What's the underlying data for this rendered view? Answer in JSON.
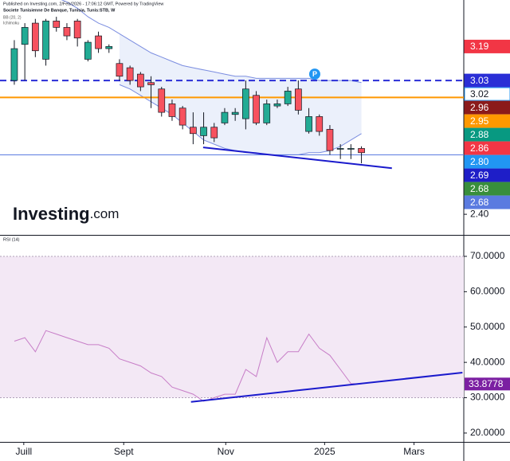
{
  "chart_data": [
    {
      "type": "candlestick",
      "title": "Societe Tunisienne De Banque, Tunisia, Tunis:STB, W",
      "subtitle": "Published on Investing.com, 2/Feb/2026 - 17:06:12 GMT, Powered by TradingView",
      "legend": [
        "BB (20, 2)",
        "Ichimoku"
      ],
      "watermark": {
        "brand": "Investing",
        "suffix": ".com"
      },
      "xlim": [
        -1.36,
        42.73
      ],
      "xticks": [
        {
          "value": 0.9,
          "label": "Juill"
        },
        {
          "value": 10.4,
          "label": "Sept"
        },
        {
          "value": 20.1,
          "label": "Nov"
        },
        {
          "value": 29.5,
          "label": "2025"
        },
        {
          "value": 38.0,
          "label": "Mars"
        }
      ],
      "ylim": [
        2.303,
        3.409
      ],
      "yticks": [
        {
          "value": 2.4,
          "label": "2.40"
        }
      ],
      "up_color": "#22ab94",
      "down_color": "#f7525f",
      "open": [
        3.03,
        3.2,
        3.3,
        3.13,
        3.31,
        3.28,
        3.31,
        3.13,
        3.24,
        3.18,
        3.11,
        3.09,
        3.06,
        3.02,
        2.99,
        2.92,
        2.9,
        2.81,
        2.77,
        2.81,
        2.83,
        2.87,
        2.85,
        2.96,
        2.83,
        2.91,
        2.92,
        2.99,
        2.79,
        2.86,
        2.8,
        2.71,
        2.71,
        2.71
      ],
      "high": [
        3.22,
        3.3,
        3.32,
        3.32,
        3.33,
        3.3,
        3.32,
        3.22,
        3.26,
        3.2,
        3.13,
        3.1,
        3.07,
        3.05,
        3.0,
        2.94,
        2.91,
        2.88,
        2.88,
        2.83,
        2.9,
        2.9,
        3.03,
        2.98,
        2.94,
        2.94,
        3.0,
        3.03,
        2.9,
        2.87,
        2.82,
        2.73,
        2.73,
        2.72
      ],
      "low": [
        3.01,
        3.03,
        3.14,
        3.1,
        3.26,
        3.22,
        3.19,
        3.12,
        3.16,
        3.16,
        3.03,
        3.01,
        2.98,
        2.9,
        2.86,
        2.84,
        2.8,
        2.73,
        2.73,
        2.74,
        2.82,
        2.84,
        2.8,
        2.82,
        2.82,
        2.9,
        2.91,
        2.87,
        2.78,
        2.77,
        2.68,
        2.66,
        2.66,
        2.64
      ],
      "close": [
        3.18,
        3.28,
        3.17,
        3.31,
        3.28,
        3.24,
        3.23,
        3.21,
        3.18,
        3.19,
        3.05,
        3.03,
        3.0,
        3.01,
        2.88,
        2.86,
        2.82,
        2.78,
        2.81,
        2.76,
        2.88,
        2.88,
        2.99,
        2.83,
        2.92,
        2.92,
        2.98,
        2.89,
        2.86,
        2.79,
        2.7,
        2.71,
        2.71,
        2.69
      ],
      "bands": {
        "color": "#7b8de0",
        "fill": "#dde6f8",
        "upper": [
          3.45,
          3.45,
          3.44,
          3.43,
          3.42,
          3.4,
          3.37,
          3.33,
          3.3,
          3.28,
          3.25,
          3.22,
          3.19,
          3.16,
          3.14,
          3.12,
          3.1,
          3.09,
          3.08,
          3.07,
          3.06,
          3.05,
          3.05,
          3.04,
          3.04,
          3.04,
          3.04,
          3.04,
          3.04,
          3.03,
          3.03,
          3.03,
          3.03,
          3.02
        ],
        "lower": [
          null,
          null,
          null,
          null,
          null,
          null,
          null,
          null,
          null,
          null,
          3.01,
          2.99,
          2.96,
          2.93,
          2.9,
          2.87,
          2.83,
          2.79,
          2.75,
          2.73,
          2.71,
          2.7,
          2.69,
          2.69,
          2.68,
          2.68,
          2.68,
          2.68,
          2.69,
          2.69,
          2.7,
          2.72,
          2.75,
          2.78
        ]
      },
      "levels": [
        {
          "value": 3.19,
          "label": "3.19",
          "color": "#f23645",
          "text_color": "#ffffff"
        },
        {
          "value": 3.03,
          "label": "3.03",
          "color": "#2a2ed6",
          "text_color": "#ffffff",
          "line": "dashed"
        },
        {
          "value": 3.02,
          "label": "3.02",
          "color": "#ffffff",
          "text_color": "#131722"
        },
        {
          "value": 2.96,
          "label": "2.96",
          "color": "#8b1a1a",
          "text_color": "#ffffff"
        },
        {
          "value": 2.95,
          "label": "2.95",
          "color": "#ff9800",
          "text_color": "#ffffff",
          "line": "solid"
        },
        {
          "value": 2.88,
          "label": "2.88",
          "color": "#089981",
          "text_color": "#ffffff"
        },
        {
          "value": 2.86,
          "label": "2.86",
          "color": "#f23645",
          "text_color": "#ffffff"
        },
        {
          "value": 2.8,
          "label": "2.80",
          "color": "#2196f3",
          "text_color": "#ffffff"
        },
        {
          "value": 2.69,
          "label": "2.69",
          "color": "#1e1ec8",
          "text_color": "#ffffff"
        },
        {
          "value": 2.68,
          "label": "2.68",
          "color": "#388e3c",
          "text_color": "#ffffff"
        },
        {
          "value": 2.68,
          "label": "2.68",
          "color": "#5b7be0",
          "text_color": "#ffffff",
          "line": "thin"
        }
      ],
      "trendline": {
        "x": [
          17.95,
          35.9
        ],
        "y": [
          2.715,
          2.617
        ],
        "color": "#1a1acc"
      },
      "pivot": {
        "x": 28.56,
        "y": 3.06,
        "label": "P",
        "color": "#2196f3"
      }
    },
    {
      "type": "line",
      "title": "RSI (14)",
      "xlim": [
        -1.36,
        42.73
      ],
      "xticks": [
        {
          "value": 0.9,
          "label": "Juill"
        },
        {
          "value": 10.4,
          "label": "Sept"
        },
        {
          "value": 20.1,
          "label": "Nov"
        },
        {
          "value": 29.5,
          "label": "2025"
        },
        {
          "value": 38.0,
          "label": "Mars"
        }
      ],
      "ylim": [
        17.5,
        75.85
      ],
      "yticks": [
        {
          "value": 20,
          "label": "20.0000"
        },
        {
          "value": 30,
          "label": "30.0000"
        },
        {
          "value": 40,
          "label": "40.0000"
        },
        {
          "value": 50,
          "label": "50.0000"
        },
        {
          "value": 60,
          "label": "60.0000"
        },
        {
          "value": 70,
          "label": "70.0000"
        }
      ],
      "band": [
        30,
        70
      ],
      "band_color": "#f3e8f5",
      "color": "#c77dc7",
      "values": [
        46,
        47,
        43,
        49,
        48,
        47,
        46,
        45,
        45,
        44,
        41,
        40,
        39,
        37,
        36,
        33,
        32,
        31,
        29,
        30,
        31,
        31,
        38,
        36,
        47,
        40,
        43,
        43,
        48,
        44,
        42,
        38,
        34,
        33.8778
      ],
      "current": {
        "value": 33.8778,
        "label": "33.8778",
        "color": "#7b1fa2"
      },
      "trendline": {
        "x": [
          16.8,
          42.6
        ],
        "y": [
          28.8,
          37.1
        ],
        "color": "#1a1acc"
      }
    }
  ]
}
